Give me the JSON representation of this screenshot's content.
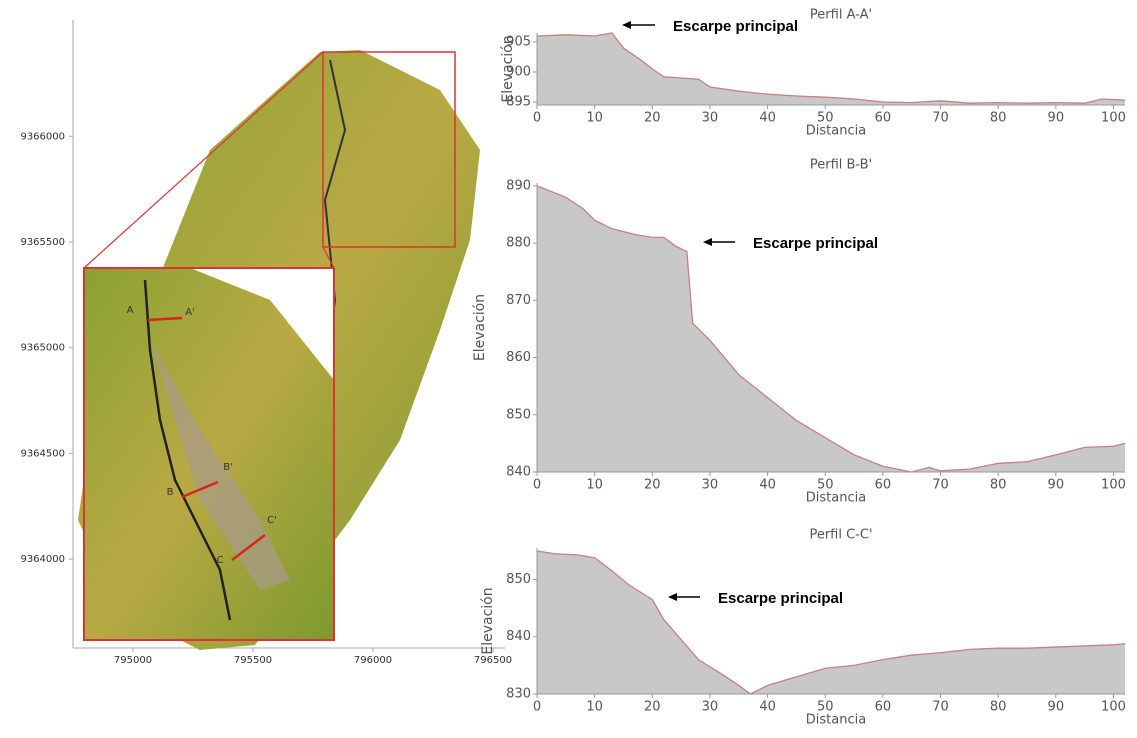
{
  "map": {
    "xlim": [
      794750,
      796550
    ],
    "ylim": [
      9363580,
      9366550
    ],
    "xticks": [
      795000,
      795500,
      796000,
      796500
    ],
    "yticks": [
      9364000,
      9364500,
      9365000,
      9365500,
      9366000
    ],
    "labels": [
      "A",
      "A'",
      "B",
      "B'",
      "C",
      "C'"
    ]
  },
  "chart_data": [
    {
      "type": "area",
      "title": "Perfil A-A'",
      "x_label": "Distancia",
      "y_label": "Elevación",
      "annotation": "Escarpe principal",
      "line_color": "#c87f80",
      "fill_color": "#c8c8c8",
      "xlim": [
        0,
        102
      ],
      "xticks": [
        0,
        10,
        20,
        30,
        40,
        50,
        60,
        70,
        80,
        90,
        100
      ],
      "ylim": [
        894.5,
        906.5
      ],
      "yticks": [
        895,
        900,
        905
      ],
      "x": [
        0,
        5,
        10,
        13,
        15,
        18,
        20,
        22,
        25,
        28,
        30,
        35,
        40,
        45,
        50,
        55,
        60,
        65,
        70,
        75,
        80,
        85,
        90,
        95,
        98,
        102
      ],
      "values": [
        906,
        906.2,
        906,
        906.5,
        904,
        902,
        900.5,
        899.2,
        899,
        898.8,
        897.5,
        896.8,
        896.3,
        896,
        895.8,
        895.5,
        895,
        894.9,
        895.2,
        894.8,
        894.9,
        894.8,
        894.9,
        894.8,
        895.5,
        895.3
      ]
    },
    {
      "type": "area",
      "title": "Perfil B-B'",
      "x_label": "Distancia",
      "y_label": "Elevación",
      "annotation": "Escarpe principal",
      "line_color": "#c87f80",
      "fill_color": "#c8c8c8",
      "xlim": [
        0,
        102
      ],
      "xticks": [
        0,
        10,
        20,
        30,
        40,
        50,
        60,
        70,
        80,
        90,
        100
      ],
      "ylim": [
        840,
        890.5
      ],
      "yticks": [
        840,
        850,
        860,
        870,
        880,
        890
      ],
      "x": [
        0,
        5,
        8,
        10,
        13,
        17,
        20,
        22,
        24,
        26,
        27,
        30,
        35,
        40,
        45,
        50,
        55,
        60,
        65,
        68,
        70,
        75,
        80,
        85,
        90,
        95,
        100,
        102
      ],
      "values": [
        890,
        888,
        886,
        884,
        882.5,
        881.5,
        881,
        881,
        879.5,
        878.5,
        866,
        863,
        857,
        853,
        849,
        846,
        843,
        841,
        840,
        840.8,
        840.2,
        840.5,
        841.5,
        841.8,
        843,
        844.3,
        844.5,
        845
      ]
    },
    {
      "type": "area",
      "title": "Perfil C-C'",
      "x_label": "Distancia",
      "y_label": "Elevación",
      "annotation": "Escarpe principal",
      "line_color": "#c87f80",
      "fill_color": "#c8c8c8",
      "xlim": [
        0,
        102
      ],
      "xticks": [
        0,
        10,
        20,
        30,
        40,
        50,
        60,
        70,
        80,
        90,
        100
      ],
      "ylim": [
        830,
        855.5
      ],
      "yticks": [
        830,
        840,
        850
      ],
      "x": [
        0,
        3,
        7,
        10,
        13,
        16,
        20,
        22,
        25,
        28,
        32,
        35,
        37,
        40,
        45,
        50,
        55,
        60,
        65,
        70,
        75,
        80,
        85,
        90,
        95,
        100,
        102
      ],
      "values": [
        855,
        854.5,
        854.3,
        853.8,
        851.5,
        849,
        846.5,
        843,
        839.5,
        836,
        833.5,
        831.5,
        830,
        831.5,
        833,
        834.5,
        835,
        836,
        836.8,
        837.2,
        837.8,
        838,
        838,
        838.2,
        838.4,
        838.6,
        838.8
      ]
    }
  ]
}
